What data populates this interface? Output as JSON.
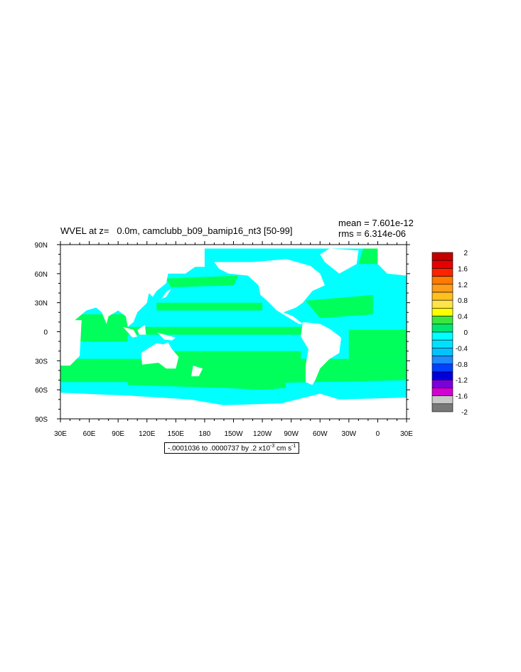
{
  "title": {
    "left": "WVEL at z=   0.0m, camclubb_b09_bamip16_nt3 [50-99]",
    "mean": "mean = 7.601e-12",
    "rms": "rms = 6.314e-06"
  },
  "contour_note": {
    "prefix": "-.0001036 to .0000737 by .2 x10",
    "exponent": "-3",
    "units": " cm s",
    "units_exp": "-1"
  },
  "colors": {
    "ocean_small": "#00ffff",
    "ocean_positive": "#00ff5a",
    "land": "#ffffff"
  },
  "chart_data": {
    "type": "heatmap",
    "title": "WVEL at z=   0.0m, camclubb_b09_bamip16_nt3 [50-99]",
    "xlabel": "",
    "ylabel": "",
    "x_ticks": [
      "30E",
      "60E",
      "90E",
      "120E",
      "150E",
      "180",
      "150W",
      "120W",
      "90W",
      "60W",
      "30W",
      "0",
      "30E"
    ],
    "y_ticks": [
      "90N",
      "60N",
      "30N",
      "0",
      "30S",
      "60S",
      "90S"
    ],
    "xlim": [
      30,
      390
    ],
    "ylim": [
      -90,
      90
    ],
    "colorbar": {
      "labels": [
        "2",
        "1.6",
        "1.2",
        "0.8",
        "0.4",
        "0",
        "-0.4",
        "-0.8",
        "-1.2",
        "-1.6",
        "-2"
      ],
      "colors": [
        "#c40000",
        "#e60000",
        "#ff2200",
        "#ff7a00",
        "#ff9c1a",
        "#ffc020",
        "#ffe34a",
        "#ffff00",
        "#3ce63c",
        "#00e66e",
        "#00ffff",
        "#00e1ff",
        "#00c3ff",
        "#1e8cff",
        "#0040ff",
        "#0000dc",
        "#7a00dc",
        "#d200d2",
        "#c8c8c8",
        "#787878"
      ]
    },
    "mean": "7.601e-12",
    "rms": "6.314e-06"
  }
}
